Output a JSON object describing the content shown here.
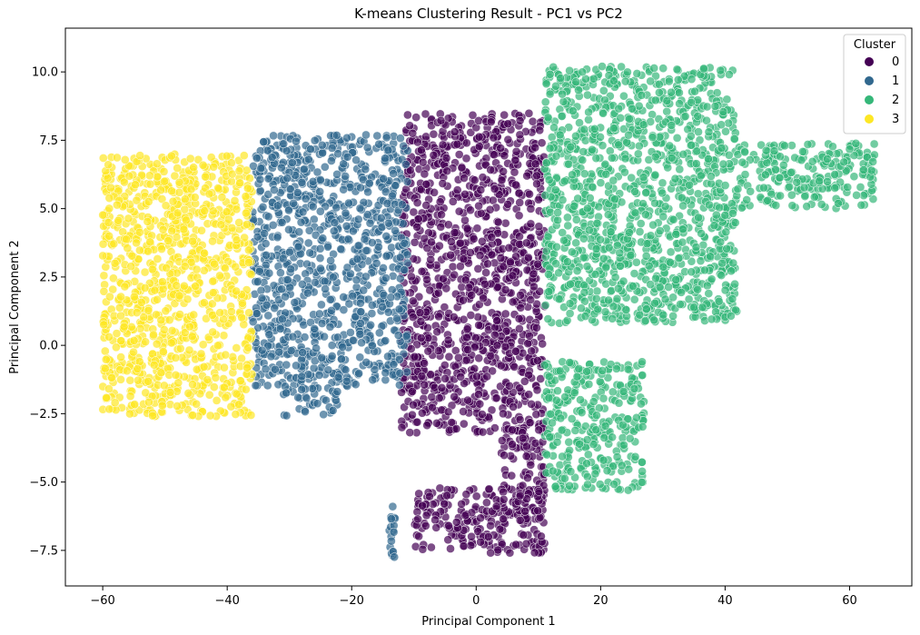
{
  "chart_data": {
    "type": "scatter",
    "title": "K-means Clustering Result - PC1 vs PC2",
    "xlabel": "Principal Component 1",
    "ylabel": "Principal Component 2",
    "xlim": [
      -66,
      70
    ],
    "ylim": [
      -8.8,
      11.6
    ],
    "xticks": [
      -60,
      -40,
      -20,
      0,
      20,
      40,
      60
    ],
    "xtick_labels": [
      "−60",
      "−40",
      "−20",
      "0",
      "20",
      "40",
      "60"
    ],
    "yticks": [
      -7.5,
      -5.0,
      -2.5,
      0.0,
      2.5,
      5.0,
      7.5,
      10.0
    ],
    "ytick_labels": [
      "−7.5",
      "−5.0",
      "−2.5",
      "0.0",
      "2.5",
      "5.0",
      "7.5",
      "10.0"
    ],
    "grid": false,
    "legend": {
      "title": "Cluster",
      "placement": "top-right"
    },
    "series": [
      {
        "name": "0",
        "color": "#440154",
        "regions": [
          {
            "x": [
              -12,
              11
            ],
            "y": [
              0.0,
              8.5
            ]
          },
          {
            "x": [
              -12,
              11
            ],
            "y": [
              -3.2,
              0.0
            ]
          },
          {
            "x": [
              4,
              11
            ],
            "y": [
              -6.5,
              -3.0
            ]
          },
          {
            "x": [
              -10,
              11
            ],
            "y": [
              -7.6,
              -5.2
            ]
          }
        ]
      },
      {
        "name": "1",
        "color": "#31688e",
        "regions": [
          {
            "x": [
              -36,
              -11
            ],
            "y": [
              -1.5,
              7.7
            ]
          },
          {
            "x": [
              -31,
              -22
            ],
            "y": [
              -2.6,
              -1.5
            ]
          },
          {
            "x": [
              -14,
              -13
            ],
            "y": [
              -7.8,
              -5.8
            ]
          }
        ]
      },
      {
        "name": "2",
        "color": "#35b779",
        "regions": [
          {
            "x": [
              11,
              42
            ],
            "y": [
              0.8,
              10.2
            ]
          },
          {
            "x": [
              42,
              64
            ],
            "y": [
              5.0,
              7.4
            ]
          },
          {
            "x": [
              11,
              27
            ],
            "y": [
              -5.3,
              -0.6
            ]
          }
        ]
      },
      {
        "name": "3",
        "color": "#fde725",
        "regions": [
          {
            "x": [
              -60,
              -36
            ],
            "y": [
              -2.6,
              7.0
            ]
          }
        ]
      }
    ]
  }
}
